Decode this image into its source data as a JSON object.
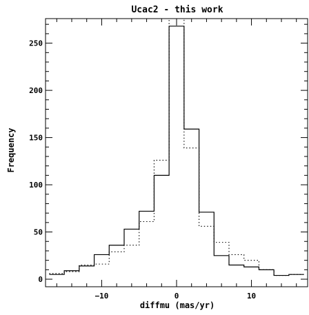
{
  "chart_data": {
    "type": "histogram",
    "title": "Ucac2 - this work",
    "xlabel": "diffmu (mas/yr)",
    "ylabel": "Frequency",
    "xlim": [
      -17.5,
      17.5
    ],
    "ylim": [
      -8,
      276
    ],
    "xticks_major": [
      -10,
      0,
      10
    ],
    "xticks_minor_step": 2,
    "yticks_major": [
      0,
      50,
      100,
      150,
      200,
      250
    ],
    "yticks_minor_step": 10,
    "grid": false,
    "bin_edges": [
      -17,
      -15,
      -13,
      -11,
      -9,
      -7,
      -5,
      -3,
      -1,
      1,
      3,
      5,
      7,
      9,
      11,
      13,
      15,
      17
    ],
    "series": [
      {
        "style": "solid",
        "values": [
          5,
          9,
          14,
          26,
          36,
          53,
          72,
          110,
          268,
          159,
          71,
          25,
          15,
          13,
          10,
          4,
          5
        ]
      },
      {
        "style": "dotted",
        "values": [
          6,
          8,
          15,
          16,
          29,
          36,
          61,
          126,
          276,
          139,
          56,
          39,
          26,
          20,
          10,
          4,
          5
        ]
      }
    ]
  }
}
